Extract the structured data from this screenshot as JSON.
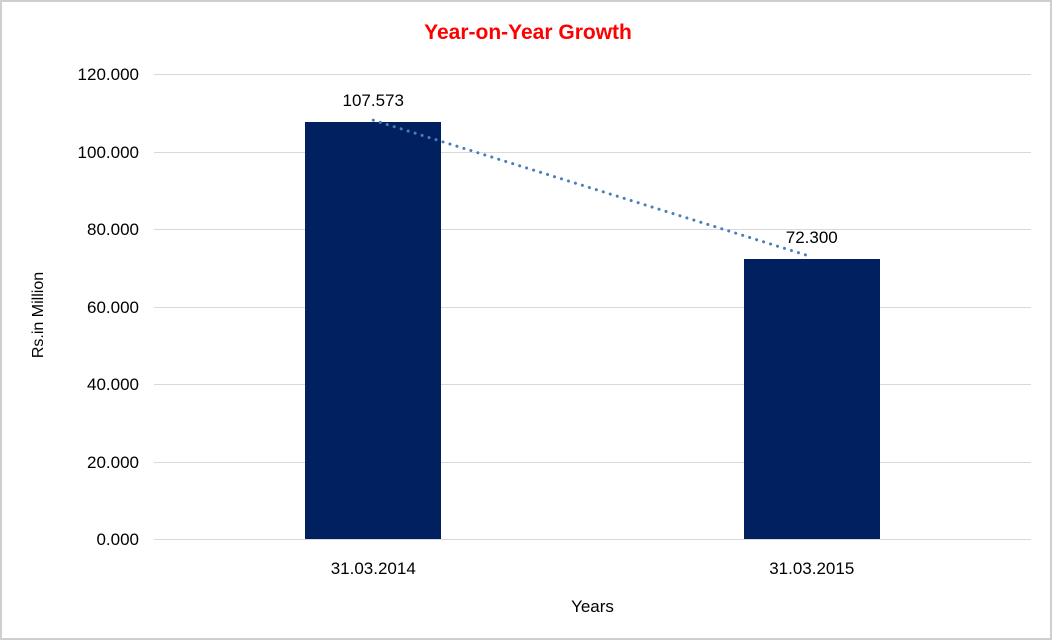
{
  "chart_data": {
    "type": "bar",
    "title": "Year-on-Year Growth",
    "title_color": "#ff0000",
    "categories": [
      "31.03.2014",
      "31.03.2015"
    ],
    "values": [
      107.573,
      72.3
    ],
    "value_labels": [
      "107.573",
      "72.300"
    ],
    "xlabel": "Years",
    "ylabel": "Rs.in Million",
    "ylim": [
      0,
      120
    ],
    "ytick_step": 20,
    "ytick_labels": [
      "0.000",
      "20.000",
      "40.000",
      "60.000",
      "80.000",
      "100.000",
      "120.000"
    ],
    "grid": true,
    "legend": "none",
    "bar_color": "#002060",
    "gridline_color": "#d9d9d9",
    "axis_text_color": "#000000",
    "trendline": {
      "style": "dotted",
      "color": "#4a7ebb",
      "connects": [
        "31.03.2014",
        "31.03.2015"
      ]
    }
  }
}
